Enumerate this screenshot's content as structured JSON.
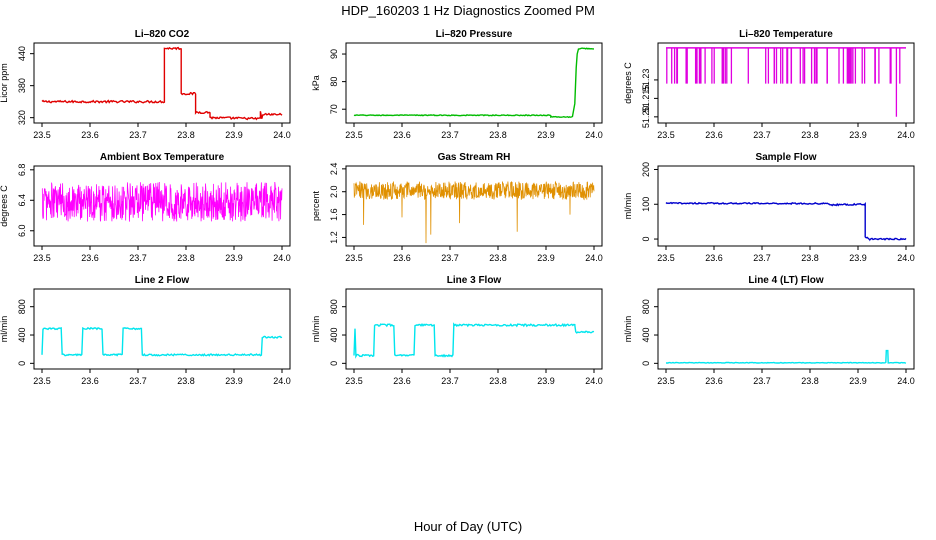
{
  "figure": {
    "title": "HDP_160203  1 Hz Diagnostics Zoomed PM",
    "xlabel": "Hour of Day (UTC)"
  },
  "chart_data": [
    {
      "type": "line",
      "title": "Li–820 CO2",
      "ylabel": "Licor ppm",
      "color": "#e00000",
      "xlim": [
        23.5,
        24.0
      ],
      "ylim": [
        310,
        460
      ],
      "xticks": [
        "23.5",
        "23.6",
        "23.7",
        "23.8",
        "23.9",
        "24.0"
      ],
      "yticks": [
        {
          "v": 320,
          "label": "320"
        },
        {
          "v": 380,
          "label": "380"
        },
        {
          "v": 440,
          "label": "440"
        }
      ],
      "series": [
        {
          "noise": 2,
          "points": [
            [
              23.5,
              350
            ],
            [
              23.755,
              350
            ],
            [
              23.755,
              450
            ],
            [
              23.79,
              450
            ],
            [
              23.79,
              365
            ],
            [
              23.82,
              365
            ],
            [
              23.82,
              330
            ],
            [
              23.85,
              330
            ],
            [
              23.85,
              320
            ],
            [
              23.955,
              318
            ],
            [
              23.955,
              332
            ],
            [
              23.958,
              318
            ],
            [
              23.96,
              326
            ],
            [
              24.0,
              326
            ]
          ]
        }
      ]
    },
    {
      "type": "line",
      "title": "Li–820 Pressure",
      "ylabel": "kPa",
      "color": "#00bb00",
      "xlim": [
        23.5,
        24.0
      ],
      "ylim": [
        65,
        94
      ],
      "xticks": [
        "23.5",
        "23.6",
        "23.7",
        "23.8",
        "23.9",
        "24.0"
      ],
      "yticks": [
        {
          "v": 70,
          "label": "70"
        },
        {
          "v": 80,
          "label": "80"
        },
        {
          "v": 90,
          "label": "90"
        }
      ],
      "series": [
        {
          "noise": 0.15,
          "points": [
            [
              23.5,
              67.8
            ],
            [
              23.91,
              67.8
            ],
            [
              23.91,
              67.2
            ],
            [
              23.955,
              67.2
            ],
            [
              23.96,
              72
            ],
            [
              23.963,
              85
            ],
            [
              23.965,
              90
            ],
            [
              23.968,
              92
            ],
            [
              24.0,
              92
            ]
          ]
        }
      ]
    },
    {
      "type": "spikes",
      "title": "Li–820 Temperature",
      "ylabel": "degrees C",
      "color": "#e000e0",
      "xlim": [
        23.5,
        24.0
      ],
      "ylim": [
        51.195,
        51.26
      ],
      "xticks": [
        "23.5",
        "23.6",
        "23.7",
        "23.8",
        "23.9",
        "24.0"
      ],
      "yticks": [
        {
          "v": 51.2,
          "label": "51.20"
        },
        {
          "v": 51.215,
          "label": "51.215"
        },
        {
          "v": 51.23,
          "label": "51.23"
        }
      ],
      "base": 51.256,
      "low": 51.227,
      "deep": [
        [
          23.98,
          51.2
        ]
      ]
    },
    {
      "type": "noise",
      "title": "Ambient Box Temperature",
      "ylabel": "degrees C",
      "color": "#ff00ff",
      "xlim": [
        23.5,
        24.0
      ],
      "ylim": [
        5.8,
        6.85
      ],
      "xticks": [
        "23.5",
        "23.6",
        "23.7",
        "23.8",
        "23.9",
        "24.0"
      ],
      "yticks": [
        {
          "v": 6.0,
          "label": "6.0"
        },
        {
          "v": 6.4,
          "label": "6.4"
        },
        {
          "v": 6.8,
          "label": "6.8"
        }
      ],
      "center": 6.38,
      "amplitude": 0.26
    },
    {
      "type": "noise",
      "title": "Gas Stream RH",
      "ylabel": "percent",
      "color": "#e09000",
      "xlim": [
        23.5,
        24.0
      ],
      "ylim": [
        1.05,
        2.45
      ],
      "xticks": [
        "23.5",
        "23.6",
        "23.7",
        "23.8",
        "23.9",
        "24.0"
      ],
      "yticks": [
        {
          "v": 1.2,
          "label": "1.2"
        },
        {
          "v": 1.6,
          "label": "1.6"
        },
        {
          "v": 2.0,
          "label": "2.0"
        },
        {
          "v": 2.4,
          "label": "2.4"
        }
      ],
      "center": 2.02,
      "amplitude": 0.16,
      "dips": [
        [
          23.52,
          1.42
        ],
        [
          23.65,
          1.1
        ],
        [
          23.66,
          1.25
        ],
        [
          23.72,
          1.45
        ],
        [
          23.84,
          1.3
        ],
        [
          23.6,
          1.55
        ],
        [
          23.95,
          1.6
        ]
      ]
    },
    {
      "type": "line",
      "title": "Sample Flow",
      "ylabel": "ml/min",
      "color": "#0000cc",
      "xlim": [
        23.5,
        24.0
      ],
      "ylim": [
        -20,
        210
      ],
      "xticks": [
        "23.5",
        "23.6",
        "23.7",
        "23.8",
        "23.9",
        "24.0"
      ],
      "yticks": [
        {
          "v": 0,
          "label": "0"
        },
        {
          "v": 100,
          "label": "100"
        },
        {
          "v": 200,
          "label": "200"
        }
      ],
      "series": [
        {
          "noise": 2,
          "points": [
            [
              23.5,
              103
            ],
            [
              23.84,
              102
            ],
            [
              23.84,
              98
            ],
            [
              23.915,
              100
            ],
            [
              23.915,
              5
            ],
            [
              23.925,
              0
            ],
            [
              24.0,
              0
            ]
          ]
        }
      ]
    },
    {
      "type": "line",
      "title": "Line 2 Flow",
      "ylabel": "ml/min",
      "color": "#00e5ee",
      "xlim": [
        23.5,
        24.0
      ],
      "ylim": [
        -80,
        1050
      ],
      "xticks": [
        "23.5",
        "23.6",
        "23.7",
        "23.8",
        "23.9",
        "24.0"
      ],
      "yticks": [
        {
          "v": 0,
          "label": "0"
        },
        {
          "v": 400,
          "label": "400"
        },
        {
          "v": 800,
          "label": "800"
        }
      ],
      "series": [
        {
          "noise": 12,
          "points": [
            [
              23.5,
              120
            ],
            [
              23.502,
              490
            ],
            [
              23.54,
              490
            ],
            [
              23.542,
              120
            ],
            [
              23.583,
              120
            ],
            [
              23.585,
              490
            ],
            [
              23.625,
              490
            ],
            [
              23.627,
              120
            ],
            [
              23.667,
              120
            ],
            [
              23.669,
              490
            ],
            [
              23.707,
              490
            ],
            [
              23.709,
              120
            ],
            [
              23.957,
              120
            ],
            [
              23.959,
              370
            ],
            [
              24.0,
              370
            ]
          ]
        }
      ]
    },
    {
      "type": "line",
      "title": "Line 3 Flow",
      "ylabel": "ml/min",
      "color": "#00e5ee",
      "xlim": [
        23.5,
        24.0
      ],
      "ylim": [
        -80,
        1050
      ],
      "xticks": [
        "23.5",
        "23.6",
        "23.7",
        "23.8",
        "23.9",
        "24.0"
      ],
      "yticks": [
        {
          "v": 0,
          "label": "0"
        },
        {
          "v": 400,
          "label": "400"
        },
        {
          "v": 800,
          "label": "800"
        }
      ],
      "series": [
        {
          "noise": 14,
          "points": [
            [
              23.5,
              110
            ],
            [
              23.502,
              490
            ],
            [
              23.504,
              110
            ],
            [
              23.541,
              110
            ],
            [
              23.543,
              540
            ],
            [
              23.583,
              540
            ],
            [
              23.585,
              110
            ],
            [
              23.625,
              110
            ],
            [
              23.627,
              540
            ],
            [
              23.667,
              540
            ],
            [
              23.669,
              110
            ],
            [
              23.706,
              110
            ],
            [
              23.708,
              540
            ],
            [
              23.96,
              540
            ],
            [
              23.962,
              440
            ],
            [
              24.0,
              440
            ]
          ]
        }
      ]
    },
    {
      "type": "line",
      "title": "Line 4 (LT) Flow",
      "ylabel": "ml/min",
      "color": "#00e5ee",
      "xlim": [
        23.5,
        24.0
      ],
      "ylim": [
        -80,
        1050
      ],
      "xticks": [
        "23.5",
        "23.6",
        "23.7",
        "23.8",
        "23.9",
        "24.0"
      ],
      "yticks": [
        {
          "v": 0,
          "label": "0"
        },
        {
          "v": 400,
          "label": "400"
        },
        {
          "v": 800,
          "label": "800"
        }
      ],
      "series": [
        {
          "noise": 4,
          "points": [
            [
              23.5,
              8
            ],
            [
              23.958,
              8
            ],
            [
              23.959,
              180
            ],
            [
              23.962,
              180
            ],
            [
              23.963,
              8
            ],
            [
              24.0,
              8
            ]
          ]
        }
      ]
    }
  ]
}
